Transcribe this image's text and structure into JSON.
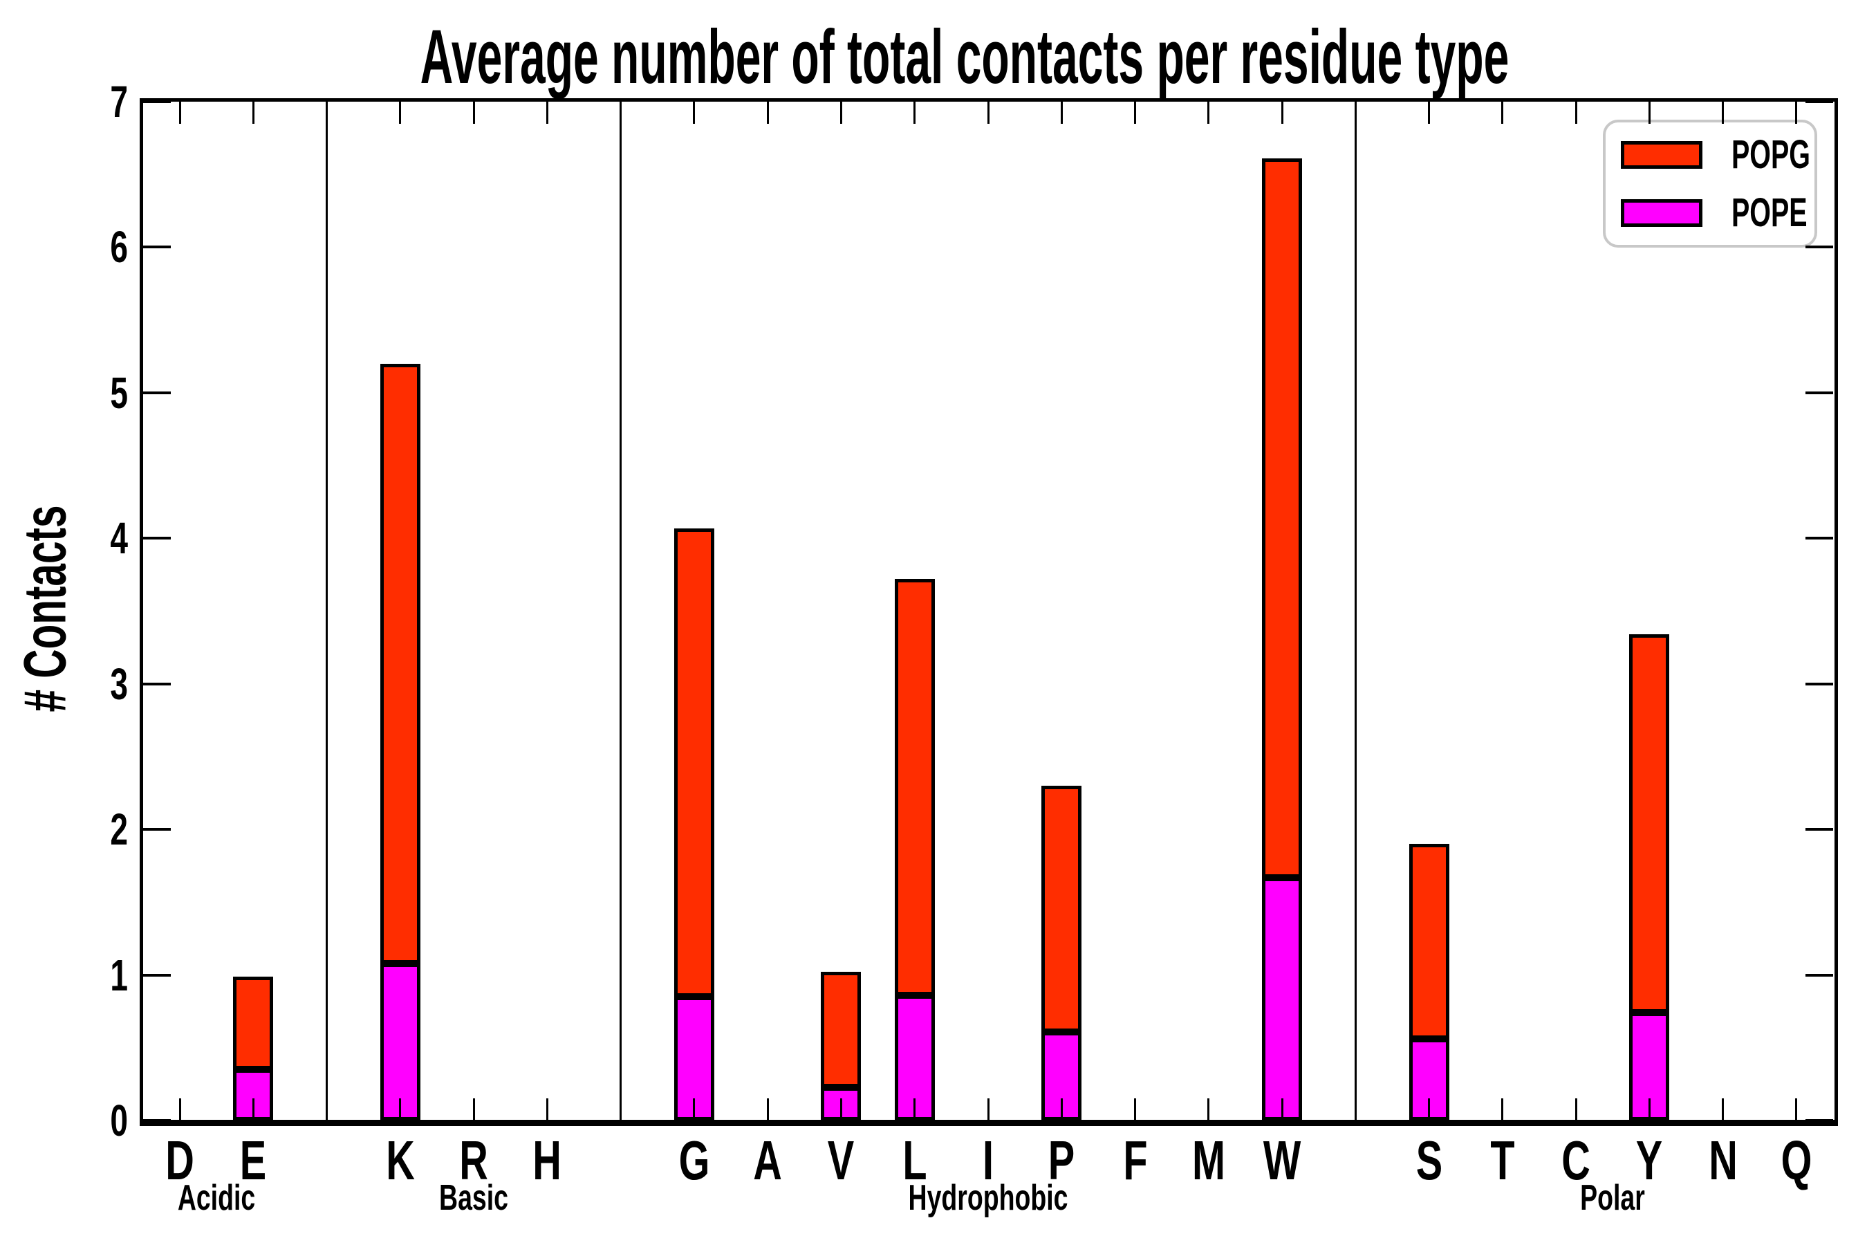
{
  "chart_data": {
    "type": "bar",
    "stacked": true,
    "title": "Average number of total contacts per residue type",
    "ylabel": "# Contacts",
    "xlabel": "",
    "ylim": [
      0,
      7
    ],
    "yticks": [
      "0",
      "1",
      "2",
      "3",
      "4",
      "5",
      "6",
      "7"
    ],
    "grid": false,
    "legend_position": "upper-right",
    "series_order": [
      "POPG",
      "POPE"
    ],
    "colors": {
      "POPG": "#FF2D00",
      "POPE": "#FF00FF",
      "bar_border": "#000000",
      "legend_border": "#c8c8c8"
    },
    "groups": [
      {
        "label": "Acidic",
        "residues": [
          {
            "label": "D",
            "POPE": 0,
            "POPG": 0
          },
          {
            "label": "E",
            "POPE": 0.35,
            "POPG": 0.64
          }
        ]
      },
      {
        "label": "Basic",
        "residues": [
          {
            "label": "K",
            "POPE": 1.08,
            "POPG": 4.12
          },
          {
            "label": "R",
            "POPE": 0,
            "POPG": 0
          },
          {
            "label": "H",
            "POPE": 0,
            "POPG": 0
          }
        ]
      },
      {
        "label": "Hydrophobic",
        "residues": [
          {
            "label": "G",
            "POPE": 0.85,
            "POPG": 3.22
          },
          {
            "label": "A",
            "POPE": 0,
            "POPG": 0
          },
          {
            "label": "V",
            "POPE": 0.23,
            "POPG": 0.79
          },
          {
            "label": "L",
            "POPE": 0.86,
            "POPG": 2.86
          },
          {
            "label": "I",
            "POPE": 0,
            "POPG": 0
          },
          {
            "label": "P",
            "POPE": 0.61,
            "POPG": 1.69
          },
          {
            "label": "F",
            "POPE": 0,
            "POPG": 0
          },
          {
            "label": "M",
            "POPE": 0,
            "POPG": 0
          },
          {
            "label": "W",
            "POPE": 1.67,
            "POPG": 4.94
          }
        ]
      },
      {
        "label": "Polar",
        "residues": [
          {
            "label": "S",
            "POPE": 0.56,
            "POPG": 1.34
          },
          {
            "label": "T",
            "POPE": 0,
            "POPG": 0
          },
          {
            "label": "C",
            "POPE": 0,
            "POPG": 0
          },
          {
            "label": "Y",
            "POPE": 0.74,
            "POPG": 2.6
          },
          {
            "label": "N",
            "POPE": 0,
            "POPG": 0
          },
          {
            "label": "Q",
            "POPE": 0,
            "POPG": 0
          }
        ]
      }
    ],
    "legend": [
      {
        "label": "POPG",
        "color": "#FF2D00"
      },
      {
        "label": "POPE",
        "color": "#FF00FF"
      }
    ]
  }
}
